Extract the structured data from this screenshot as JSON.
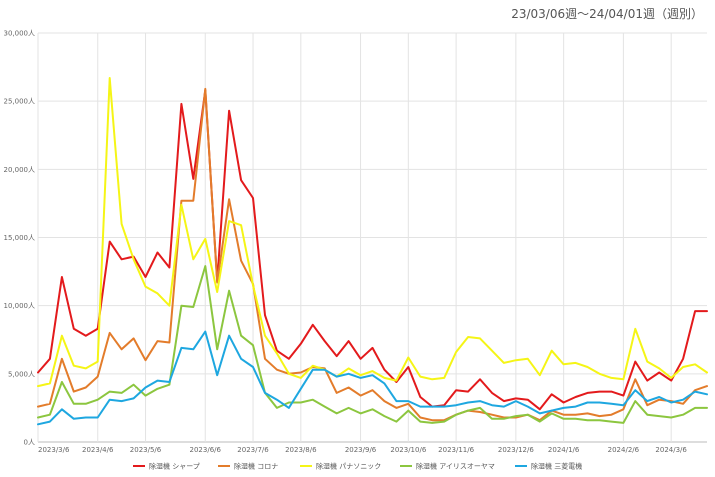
{
  "period_label": "23/03/06週〜24/04/01週（週別）",
  "chart_data": {
    "type": "line",
    "title": "",
    "xlabel": "",
    "ylabel": "",
    "ylim": [
      0,
      30000
    ],
    "y_ticks": [
      0,
      5000,
      10000,
      15000,
      20000,
      25000,
      30000
    ],
    "y_tick_labels": [
      "0人",
      "5,000人",
      "10,000人",
      "15,000人",
      "20,000人",
      "25,000人",
      "30,000人"
    ],
    "x_tick_labels": [
      {
        "index": 0,
        "label": "2023/3/6"
      },
      {
        "index": 5,
        "label": "2023/4/6"
      },
      {
        "index": 9,
        "label": "2023/5/6"
      },
      {
        "index": 14,
        "label": "2023/6/6"
      },
      {
        "index": 18,
        "label": "2023/7/6"
      },
      {
        "index": 22,
        "label": "2023/8/6"
      },
      {
        "index": 27,
        "label": "2023/9/6"
      },
      {
        "index": 31,
        "label": "2023/10/6"
      },
      {
        "index": 35,
        "label": "2023/11/6"
      },
      {
        "index": 40,
        "label": "2023/12/6"
      },
      {
        "index": 44,
        "label": "2024/1/6"
      },
      {
        "index": 49,
        "label": "2024/2/6"
      },
      {
        "index": 53,
        "label": "2024/3/6"
      }
    ],
    "grid": true,
    "legend_position": "bottom",
    "series": [
      {
        "name": "除湿機 シャープ",
        "color": "#e31a1c",
        "values": [
          5100,
          6100,
          12100,
          8300,
          7800,
          8300,
          14700,
          13400,
          13600,
          12100,
          13900,
          12800,
          24800,
          19300,
          25800,
          11800,
          24300,
          19200,
          17900,
          9300,
          6700,
          6100,
          7200,
          8600,
          7400,
          6300,
          7400,
          6100,
          6900,
          5300,
          4400,
          5500,
          3300,
          2600,
          2700,
          3800,
          3700,
          4600,
          3600,
          3000,
          3200,
          3100,
          2400,
          3500,
          2900,
          3300,
          3600,
          3700,
          3700,
          3400,
          5900,
          4500,
          5100,
          4500,
          6100,
          9600,
          9600
        ]
      },
      {
        "name": "除湿機 コロナ",
        "color": "#e37c2b",
        "values": [
          2600,
          2800,
          6100,
          3700,
          4000,
          4800,
          8000,
          6800,
          7600,
          6000,
          7400,
          7300,
          17700,
          17700,
          25900,
          11700,
          17800,
          13300,
          11600,
          6100,
          5300,
          5000,
          5100,
          5500,
          5400,
          3600,
          4000,
          3400,
          3800,
          3000,
          2500,
          2800,
          1800,
          1600,
          1600,
          2000,
          2300,
          2200,
          2000,
          1800,
          1800,
          2000,
          1600,
          2300,
          2000,
          2000,
          2100,
          1900,
          2000,
          2400,
          4600,
          2700,
          3100,
          3000,
          2800,
          3800,
          4100
        ]
      },
      {
        "name": "除湿機 パナソニック",
        "color": "#f5f516",
        "values": [
          4100,
          4300,
          7800,
          5600,
          5400,
          5900,
          26700,
          16000,
          13400,
          11400,
          10900,
          10000,
          17400,
          13400,
          14900,
          11000,
          16200,
          15900,
          11500,
          7800,
          6500,
          5000,
          4700,
          5600,
          5300,
          4800,
          5400,
          4900,
          5200,
          4700,
          4500,
          6200,
          4800,
          4600,
          4700,
          6600,
          7700,
          7600,
          6700,
          5800,
          6000,
          6100,
          4900,
          6700,
          5700,
          5800,
          5500,
          5000,
          4700,
          4600,
          8300,
          5900,
          5400,
          4700,
          5500,
          5700,
          5100
        ]
      },
      {
        "name": "除湿機 アイリスオーヤマ",
        "color": "#8cc63f",
        "values": [
          1800,
          2000,
          4400,
          2800,
          2800,
          3100,
          3700,
          3600,
          4200,
          3400,
          3900,
          4200,
          10000,
          9900,
          12900,
          6800,
          11100,
          7800,
          7100,
          3600,
          2500,
          2900,
          2900,
          3100,
          2600,
          2100,
          2500,
          2100,
          2400,
          1900,
          1500,
          2300,
          1500,
          1400,
          1500,
          2000,
          2300,
          2500,
          1700,
          1700,
          1900,
          2000,
          1500,
          2100,
          1700,
          1700,
          1600,
          1600,
          1500,
          1400,
          3000,
          2000,
          1900,
          1800,
          2000,
          2500,
          2500
        ]
      },
      {
        "name": "除湿機 三菱電機",
        "color": "#1ea7e0",
        "values": [
          1300,
          1500,
          2400,
          1700,
          1800,
          1800,
          3100,
          3000,
          3200,
          4000,
          4500,
          4400,
          6900,
          6800,
          8100,
          4900,
          7800,
          6100,
          5500,
          3600,
          3100,
          2500,
          3900,
          5300,
          5300,
          4800,
          5000,
          4700,
          4900,
          4300,
          3000,
          3000,
          2600,
          2600,
          2600,
          2700,
          2900,
          3000,
          2700,
          2600,
          3000,
          2600,
          2100,
          2300,
          2500,
          2600,
          2900,
          2900,
          2800,
          2700,
          3800,
          3000,
          3300,
          2900,
          3100,
          3700,
          3500
        ]
      }
    ]
  }
}
